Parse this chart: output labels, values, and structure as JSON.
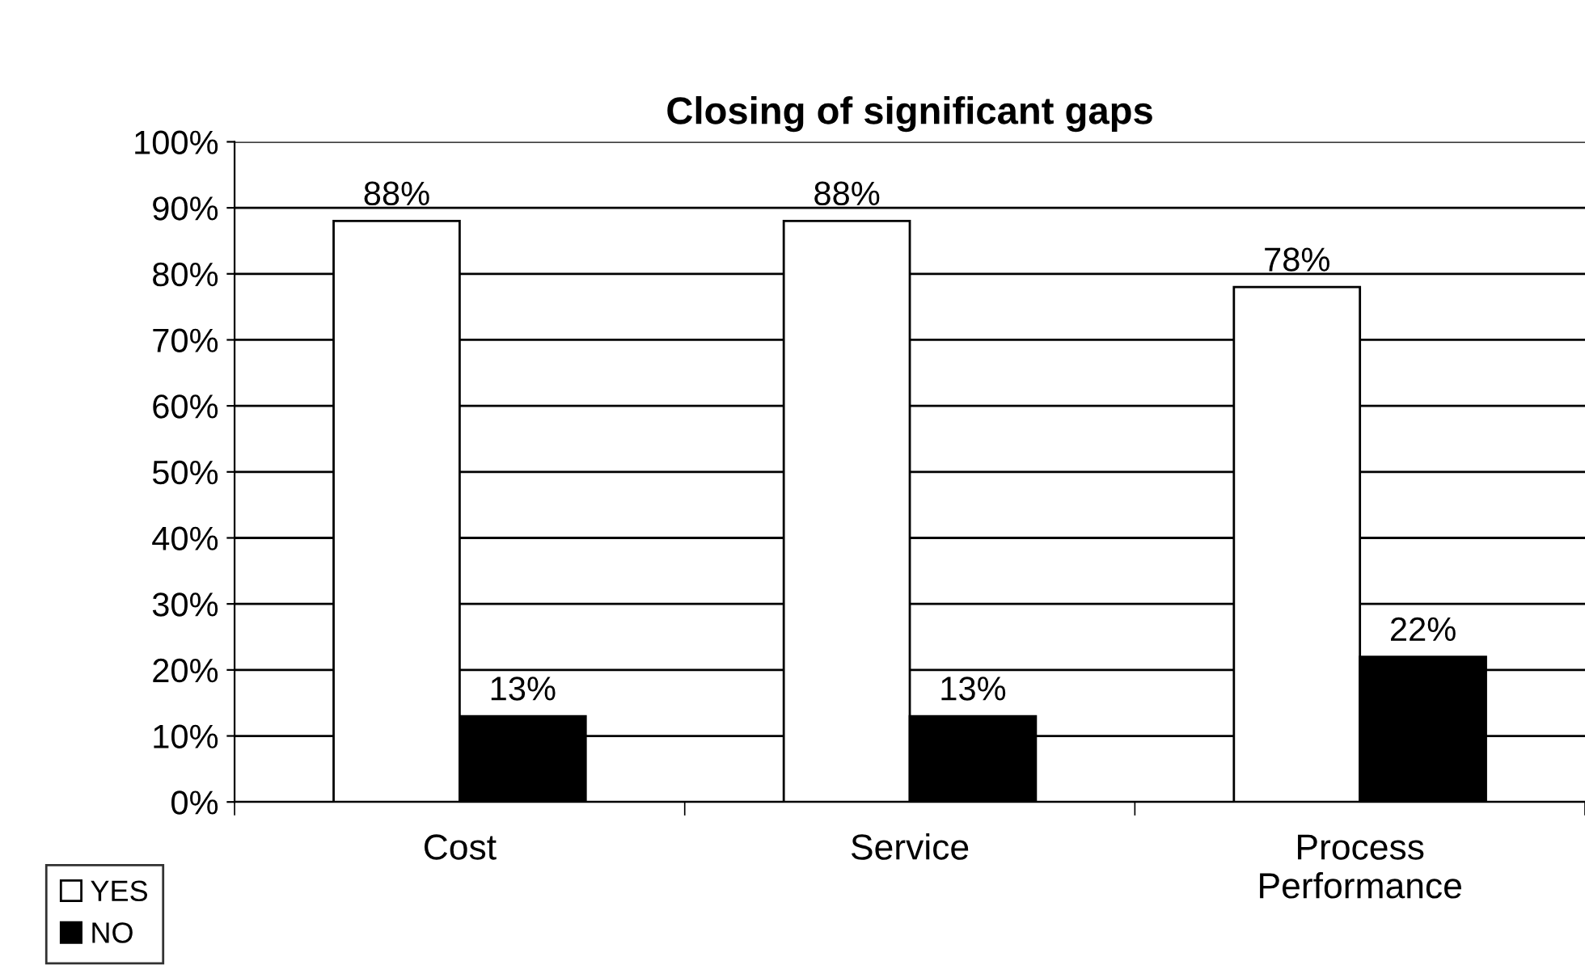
{
  "chart_data": {
    "type": "bar",
    "title": "Closing of significant gaps",
    "categories": [
      "Cost",
      "Service",
      "Process\nPerformance"
    ],
    "series": [
      {
        "name": "YES",
        "color": "#ffffff",
        "values": [
          88,
          88,
          78
        ],
        "value_labels": [
          "88%",
          "88%",
          "78%"
        ]
      },
      {
        "name": "NO",
        "color": "#000000",
        "values": [
          13,
          13,
          22
        ],
        "value_labels": [
          "13%",
          "13%",
          "22%"
        ]
      }
    ],
    "ylim": [
      0,
      100
    ],
    "yticks": [
      {
        "value": 0,
        "label": "0%"
      },
      {
        "value": 10,
        "label": "10%"
      },
      {
        "value": 20,
        "label": "20%"
      },
      {
        "value": 30,
        "label": "30%"
      },
      {
        "value": 40,
        "label": "40%"
      },
      {
        "value": 50,
        "label": "50%"
      },
      {
        "value": 60,
        "label": "60%"
      },
      {
        "value": 70,
        "label": "70%"
      },
      {
        "value": 80,
        "label": "80%"
      },
      {
        "value": 90,
        "label": "90%"
      },
      {
        "value": 100,
        "label": "100%"
      }
    ],
    "grid": "y",
    "legend": "bottom left"
  }
}
